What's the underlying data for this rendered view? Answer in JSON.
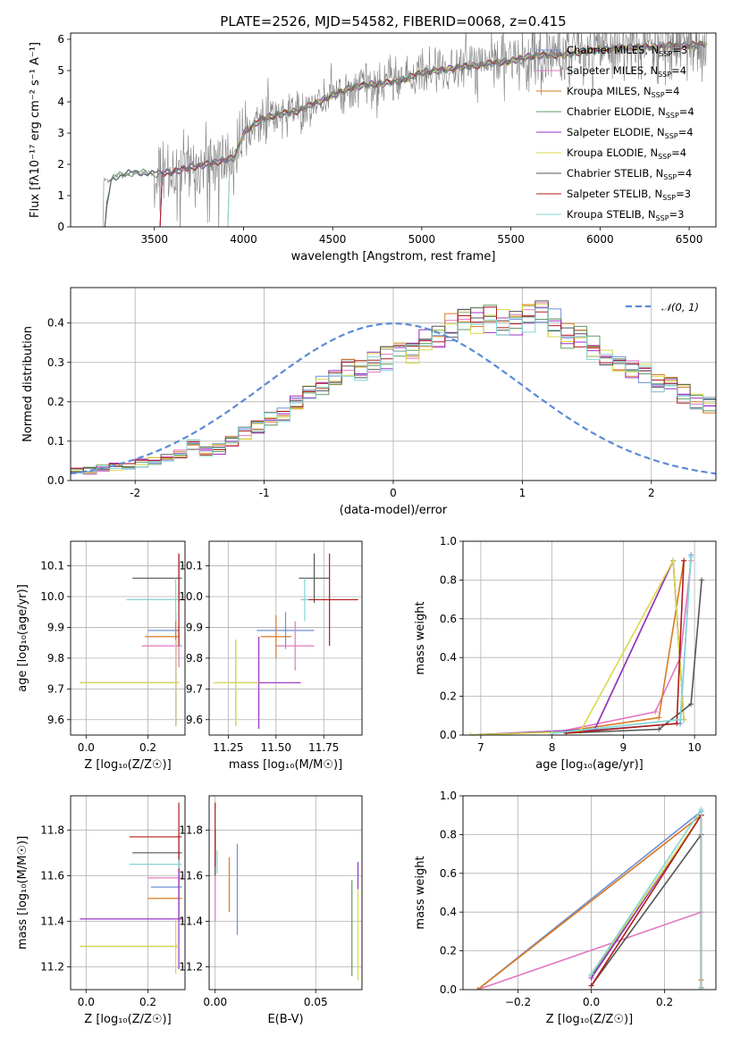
{
  "title": "PLATE=2526, MJD=54582, FIBERID=0068, z=0.415",
  "colors": {
    "Chabrier MILES": "#6b8fd6",
    "Salpeter MILES": "#e377c2",
    "Kroupa MILES": "#d97a22",
    "Chabrier ELODIE": "#5f9b5f",
    "Salpeter ELODIE": "#9b30c4",
    "Kroupa ELODIE": "#d9d94a",
    "Chabrier STELIB": "#555555",
    "Salpeter STELIB": "#b01c1c",
    "Kroupa STELIB": "#84d6d6",
    "data": "#7f7f7f",
    "normal": "#5b8bd6"
  },
  "chart_data": [
    {
      "type": "line",
      "id": "spectrum",
      "title": "PLATE=2526, MJD=54582, FIBERID=0068, z=0.415",
      "xlabel": "wavelength [Angstrom, rest frame]",
      "ylabel": "Flux [fλ10⁻¹⁷ erg cm⁻² s⁻¹ A⁻¹]",
      "xlim": [
        3030,
        6650
      ],
      "ylim": [
        0,
        6.2
      ],
      "xticks": [
        3500,
        4000,
        4500,
        5000,
        5500,
        6000,
        6500
      ],
      "yticks": [
        0,
        1,
        2,
        3,
        4,
        5,
        6
      ],
      "legend_position": "upper-right",
      "series": [
        {
          "name": "Chabrier MILES, N_SSP=3",
          "label": "Chabrier MILES",
          "nssp": "3"
        },
        {
          "name": "Salpeter MILES, N_SSP=4",
          "label": "Salpeter MILES",
          "nssp": "4"
        },
        {
          "name": "Kroupa MILES, N_SSP=4",
          "label": "Kroupa MILES",
          "nssp": "4"
        },
        {
          "name": "Chabrier ELODIE, N_SSP=4",
          "label": "Chabrier ELODIE",
          "nssp": "4"
        },
        {
          "name": "Salpeter ELODIE, N_SSP=4",
          "label": "Salpeter ELODIE",
          "nssp": "4"
        },
        {
          "name": "Kroupa ELODIE, N_SSP=4",
          "label": "Kroupa ELODIE",
          "nssp": "4"
        },
        {
          "name": "Chabrier STELIB, N_SSP=4",
          "label": "Chabrier STELIB",
          "nssp": "4"
        },
        {
          "name": "Salpeter STELIB, N_SSP=3",
          "label": "Salpeter STELIB",
          "nssp": "3"
        },
        {
          "name": "Kroupa STELIB, N_SSP=3",
          "label": "Kroupa STELIB",
          "nssp": "3"
        }
      ],
      "continuum": {
        "x": [
          3210,
          3260,
          3300,
          3400,
          3500,
          3600,
          3700,
          3800,
          3900,
          3950,
          4000,
          4100,
          4200,
          4300,
          4400,
          4500,
          4600,
          4700,
          4800,
          4900,
          5000,
          5100,
          5200,
          5300,
          5400,
          5500,
          5600,
          5700,
          5800,
          5900,
          6000,
          6100,
          6200,
          6300,
          6400,
          6500,
          6600
        ],
        "y": [
          0.0,
          1.55,
          1.65,
          1.75,
          1.7,
          1.75,
          1.9,
          2.0,
          2.15,
          2.2,
          3.0,
          3.45,
          3.6,
          3.7,
          3.95,
          4.2,
          4.45,
          4.55,
          4.6,
          4.7,
          4.95,
          5.0,
          5.1,
          5.15,
          5.25,
          5.3,
          5.45,
          5.5,
          5.5,
          5.6,
          5.65,
          5.7,
          5.75,
          5.75,
          5.8,
          5.8,
          5.85
        ]
      }
    },
    {
      "type": "bar",
      "id": "residuals",
      "xlabel": "(data-model)/error",
      "ylabel": "Normed distribution",
      "xlim": [
        -2.5,
        2.5
      ],
      "ylim": [
        0,
        0.49
      ],
      "xticks": [
        -2,
        -1,
        0,
        1,
        2
      ],
      "yticks": [
        0.0,
        0.1,
        0.2,
        0.3,
        0.4
      ],
      "legend": [
        "𝒩(0, 1)"
      ],
      "legend_position": "upper-right",
      "bin_width": 0.1,
      "bin_start": -2.5,
      "histogram": [
        0.025,
        0.025,
        0.03,
        0.035,
        0.04,
        0.045,
        0.05,
        0.055,
        0.07,
        0.09,
        0.075,
        0.08,
        0.1,
        0.12,
        0.135,
        0.155,
        0.17,
        0.2,
        0.22,
        0.24,
        0.265,
        0.29,
        0.28,
        0.3,
        0.31,
        0.32,
        0.33,
        0.35,
        0.37,
        0.39,
        0.4,
        0.41,
        0.41,
        0.4,
        0.395,
        0.41,
        0.42,
        0.4,
        0.37,
        0.36,
        0.34,
        0.32,
        0.3,
        0.28,
        0.27,
        0.25,
        0.24,
        0.22,
        0.2,
        0.19
      ]
    },
    {
      "type": "scatter",
      "id": "age-vs-Z",
      "xlabel": "Z [log₁₀(Z/Z☉)]",
      "ylabel": "age  [log₁₀(age/yr)]",
      "xlim": [
        -0.05,
        0.32
      ],
      "ylim": [
        9.55,
        10.18
      ],
      "xticks": [
        0.0,
        0.2
      ],
      "yticks": [
        9.6,
        9.7,
        9.8,
        9.9,
        10.0,
        10.1
      ],
      "points": [
        {
          "series": "Chabrier MILES",
          "x": 0.29,
          "y": 9.89,
          "xerr": [
            0.09,
            0.01
          ],
          "yerr": [
            0.06,
            0.06
          ]
        },
        {
          "series": "Salpeter MILES",
          "x": 0.3,
          "y": 9.84,
          "xerr": [
            0.12,
            0.01
          ],
          "yerr": [
            0.07,
            0.07
          ]
        },
        {
          "series": "Kroupa MILES",
          "x": 0.29,
          "y": 9.87,
          "xerr": [
            0.1,
            0.01
          ],
          "yerr": [
            0.06,
            0.06
          ]
        },
        {
          "series": "Chabrier ELODIE",
          "x": 0.29,
          "y": 9.72,
          "xerr": [
            0.31,
            0.01
          ],
          "yerr": [
            0.14,
            0.14
          ]
        },
        {
          "series": "Salpeter ELODIE",
          "x": 0.29,
          "y": 9.72,
          "xerr": [
            0.31,
            0.01
          ],
          "yerr": [
            0.14,
            0.14
          ]
        },
        {
          "series": "Kroupa ELODIE",
          "x": 0.29,
          "y": 9.72,
          "xerr": [
            0.31,
            0.01
          ],
          "yerr": [
            0.14,
            0.14
          ]
        },
        {
          "series": "Chabrier STELIB",
          "x": 0.3,
          "y": 10.06,
          "xerr": [
            0.15,
            0.01
          ],
          "yerr": [
            0.08,
            0.08
          ]
        },
        {
          "series": "Salpeter STELIB",
          "x": 0.3,
          "y": 9.99,
          "xerr": [
            0.16,
            0.01
          ],
          "yerr": [
            0.15,
            0.15
          ]
        },
        {
          "series": "Kroupa STELIB",
          "x": 0.29,
          "y": 9.99,
          "xerr": [
            0.16,
            0.01
          ],
          "yerr": [
            0.07,
            0.07
          ]
        }
      ]
    },
    {
      "type": "scatter",
      "id": "age-vs-mass",
      "xlabel": "mass [log₁₀(M/M☉)]",
      "ylabel": "",
      "xlim": [
        11.15,
        11.95
      ],
      "ylim": [
        9.55,
        10.18
      ],
      "xticks": [
        11.25,
        11.5,
        11.75
      ],
      "xticklabels": [
        "11.25",
        "11.50",
        "11.75"
      ],
      "yticks": [
        9.6,
        9.7,
        9.8,
        9.9,
        10.0,
        10.1
      ],
      "points": [
        {
          "series": "Chabrier MILES",
          "x": 11.55,
          "y": 9.89,
          "xerr": [
            0.15,
            0.15
          ],
          "yerr": [
            0.06,
            0.06
          ]
        },
        {
          "series": "Salpeter MILES",
          "x": 11.6,
          "y": 9.84,
          "xerr": [
            0.1,
            0.1
          ],
          "yerr": [
            0.08,
            0.08
          ]
        },
        {
          "series": "Kroupa MILES",
          "x": 11.5,
          "y": 9.87,
          "xerr": [
            0.08,
            0.08
          ],
          "yerr": [
            0.07,
            0.07
          ]
        },
        {
          "series": "Chabrier ELODIE",
          "x": 11.29,
          "y": 9.72,
          "xerr": [
            0.01,
            0.01
          ],
          "yerr": [
            0.14,
            0.14
          ]
        },
        {
          "series": "Salpeter ELODIE",
          "x": 11.41,
          "y": 9.72,
          "xerr": [
            0.22,
            0.22
          ],
          "yerr": [
            0.15,
            0.15
          ]
        },
        {
          "series": "Kroupa ELODIE",
          "x": 11.29,
          "y": 9.72,
          "xerr": [
            0.12,
            0.12
          ],
          "yerr": [
            0.14,
            0.14
          ]
        },
        {
          "series": "Chabrier STELIB",
          "x": 11.7,
          "y": 10.06,
          "xerr": [
            0.08,
            0.08
          ],
          "yerr": [
            0.08,
            0.08
          ]
        },
        {
          "series": "Salpeter STELIB",
          "x": 11.78,
          "y": 9.99,
          "xerr": [
            0.15,
            0.15
          ],
          "yerr": [
            0.15,
            0.15
          ]
        },
        {
          "series": "Kroupa STELIB",
          "x": 11.65,
          "y": 9.99,
          "xerr": [
            0.02,
            0.02
          ],
          "yerr": [
            0.07,
            0.07
          ]
        }
      ]
    },
    {
      "type": "line",
      "id": "mass-weight-vs-age",
      "xlabel": "age  [log₁₀(age/yr)]",
      "ylabel": "mass weight",
      "xlim": [
        6.75,
        10.3
      ],
      "ylim": [
        0,
        1.0
      ],
      "xticks": [
        7,
        8,
        9,
        10
      ],
      "yticks": [
        0.0,
        0.2,
        0.4,
        0.6,
        0.8,
        1.0
      ],
      "series": [
        {
          "label": "Chabrier MILES",
          "x": [
            8.0,
            9.8,
            9.95
          ],
          "y": [
            0.01,
            0.06,
            0.93
          ]
        },
        {
          "label": "Salpeter MILES",
          "x": [
            8.0,
            9.45,
            9.8,
            9.95
          ],
          "y": [
            0.01,
            0.12,
            0.4,
            0.9
          ]
        },
        {
          "label": "Kroupa MILES",
          "x": [
            8.0,
            9.5,
            9.85
          ],
          "y": [
            0.01,
            0.09,
            0.9
          ]
        },
        {
          "label": "Chabrier ELODIE",
          "x": [
            6.85,
            8.6,
            9.7,
            9.85
          ],
          "y": [
            0.0,
            0.03,
            0.9,
            0.08
          ]
        },
        {
          "label": "Salpeter ELODIE",
          "x": [
            6.85,
            8.6,
            9.7,
            9.85
          ],
          "y": [
            0.0,
            0.03,
            0.9,
            0.08
          ]
        },
        {
          "label": "Kroupa ELODIE",
          "x": [
            6.85,
            8.4,
            9.7,
            9.85
          ],
          "y": [
            0.0,
            0.02,
            0.9,
            0.08
          ]
        },
        {
          "label": "Chabrier STELIB",
          "x": [
            8.2,
            9.5,
            9.95,
            10.1
          ],
          "y": [
            0.01,
            0.03,
            0.16,
            0.8
          ]
        },
        {
          "label": "Salpeter STELIB",
          "x": [
            8.2,
            9.75,
            9.85
          ],
          "y": [
            0.01,
            0.06,
            0.9
          ]
        },
        {
          "label": "Kroupa STELIB",
          "x": [
            8.0,
            9.8,
            9.95
          ],
          "y": [
            0.01,
            0.08,
            0.92
          ]
        }
      ]
    },
    {
      "type": "scatter",
      "id": "mass-vs-Z",
      "xlabel": "Z [log₁₀(Z/Z☉)]",
      "ylabel": "mass [log₁₀(M/M☉)]",
      "xlim": [
        -0.05,
        0.32
      ],
      "ylim": [
        11.1,
        11.95
      ],
      "xticks": [
        0.0,
        0.2
      ],
      "yticks": [
        11.2,
        11.4,
        11.6,
        11.8
      ],
      "points": [
        {
          "series": "Chabrier MILES",
          "x": 0.3,
          "y": 11.55,
          "xerr": [
            0.09,
            0.01
          ],
          "yerr": [
            0.15,
            0.15
          ]
        },
        {
          "series": "Salpeter MILES",
          "x": 0.3,
          "y": 11.59,
          "xerr": [
            0.1,
            0.01
          ],
          "yerr": [
            0.1,
            0.1
          ]
        },
        {
          "series": "Kroupa MILES",
          "x": 0.3,
          "y": 11.5,
          "xerr": [
            0.1,
            0.01
          ],
          "yerr": [
            0.08,
            0.08
          ]
        },
        {
          "series": "Chabrier ELODIE",
          "x": 0.29,
          "y": 11.29,
          "xerr": [
            0.31,
            0.01
          ],
          "yerr": [
            0.01,
            0.01
          ]
        },
        {
          "series": "Salpeter ELODIE",
          "x": 0.3,
          "y": 11.41,
          "xerr": [
            0.32,
            0.01
          ],
          "yerr": [
            0.22,
            0.22
          ]
        },
        {
          "series": "Kroupa ELODIE",
          "x": 0.29,
          "y": 11.29,
          "xerr": [
            0.31,
            0.01
          ],
          "yerr": [
            0.12,
            0.12
          ]
        },
        {
          "series": "Chabrier STELIB",
          "x": 0.3,
          "y": 11.7,
          "xerr": [
            0.15,
            0.01
          ],
          "yerr": [
            0.08,
            0.08
          ]
        },
        {
          "series": "Salpeter STELIB",
          "x": 0.3,
          "y": 11.77,
          "xerr": [
            0.16,
            0.01
          ],
          "yerr": [
            0.15,
            0.15
          ]
        },
        {
          "series": "Kroupa STELIB",
          "x": 0.3,
          "y": 11.65,
          "xerr": [
            0.16,
            0.01
          ],
          "yerr": [
            0.02,
            0.02
          ]
        }
      ]
    },
    {
      "type": "scatter",
      "id": "mass-vs-ebv",
      "xlabel": "E(B-V)",
      "ylabel": "",
      "xlim": [
        -0.003,
        0.073
      ],
      "ylim": [
        11.1,
        11.95
      ],
      "xticks": [
        0.0,
        0.05
      ],
      "yticks": [
        11.2,
        11.4,
        11.6,
        11.8
      ],
      "points": [
        {
          "series": "Chabrier MILES",
          "x": 0.011,
          "y": 11.54,
          "yerr": [
            0.2,
            0.2
          ]
        },
        {
          "series": "Salpeter MILES",
          "x": 0.0,
          "y": 11.6,
          "yerr": [
            0.2,
            0.2
          ]
        },
        {
          "series": "Kroupa MILES",
          "x": 0.007,
          "y": 11.56,
          "yerr": [
            0.12,
            0.12
          ]
        },
        {
          "series": "Chabrier ELODIE",
          "x": 0.068,
          "y": 11.37,
          "yerr": [
            0.21,
            0.21
          ]
        },
        {
          "series": "Salpeter ELODIE",
          "x": 0.071,
          "y": 11.6,
          "yerr": [
            0.06,
            0.06
          ]
        },
        {
          "series": "Kroupa ELODIE",
          "x": 0.071,
          "y": 11.34,
          "yerr": [
            0.2,
            0.2
          ]
        },
        {
          "series": "Chabrier STELIB",
          "x": 0.0,
          "y": 11.7,
          "yerr": [
            0.1,
            0.1
          ]
        },
        {
          "series": "Salpeter STELIB",
          "x": 0.0,
          "y": 11.78,
          "yerr": [
            0.14,
            0.14
          ]
        },
        {
          "series": "Kroupa STELIB",
          "x": 0.001,
          "y": 11.66,
          "yerr": [
            0.05,
            0.05
          ]
        }
      ]
    },
    {
      "type": "line",
      "id": "mass-weight-vs-Z",
      "xlabel": "Z [log₁₀(Z/Z☉)]",
      "ylabel": "mass weight",
      "xlim": [
        -0.35,
        0.34
      ],
      "ylim": [
        0,
        1.0
      ],
      "xticks": [
        -0.2,
        0.0,
        0.2
      ],
      "xticklabels": [
        "−0.2",
        "0.0",
        "0.2"
      ],
      "yticks": [
        0.0,
        0.2,
        0.4,
        0.6,
        0.8,
        1.0
      ],
      "series": [
        {
          "label": "Chabrier MILES",
          "x": [
            -0.31,
            0.3
          ],
          "y": [
            0.0,
            0.92
          ]
        },
        {
          "label": "Salpeter MILES",
          "x": [
            -0.31,
            0.3,
            0.3
          ],
          "y": [
            0.0,
            0.4,
            0.05
          ]
        },
        {
          "label": "Kroupa MILES",
          "x": [
            -0.31,
            0.3,
            0.3
          ],
          "y": [
            0.0,
            0.9,
            0.05
          ]
        },
        {
          "label": "Chabrier ELODIE",
          "x": [
            0.0,
            0.3,
            0.3
          ],
          "y": [
            0.07,
            0.9,
            0.01
          ]
        },
        {
          "label": "Salpeter ELODIE",
          "x": [
            0.0,
            0.3,
            0.3
          ],
          "y": [
            0.06,
            0.9,
            0.01
          ]
        },
        {
          "label": "Kroupa ELODIE",
          "x": [
            0.0,
            0.3,
            0.3
          ],
          "y": [
            0.08,
            0.9,
            0.01
          ]
        },
        {
          "label": "Chabrier STELIB",
          "x": [
            0.0,
            0.3,
            0.3
          ],
          "y": [
            0.02,
            0.8,
            0.01
          ]
        },
        {
          "label": "Salpeter STELIB",
          "x": [
            0.0,
            0.3,
            0.3
          ],
          "y": [
            0.02,
            0.9,
            0.01
          ]
        },
        {
          "label": "Kroupa STELIB",
          "x": [
            0.0,
            0.3,
            0.3
          ],
          "y": [
            0.08,
            0.93,
            0.01
          ]
        }
      ]
    }
  ]
}
